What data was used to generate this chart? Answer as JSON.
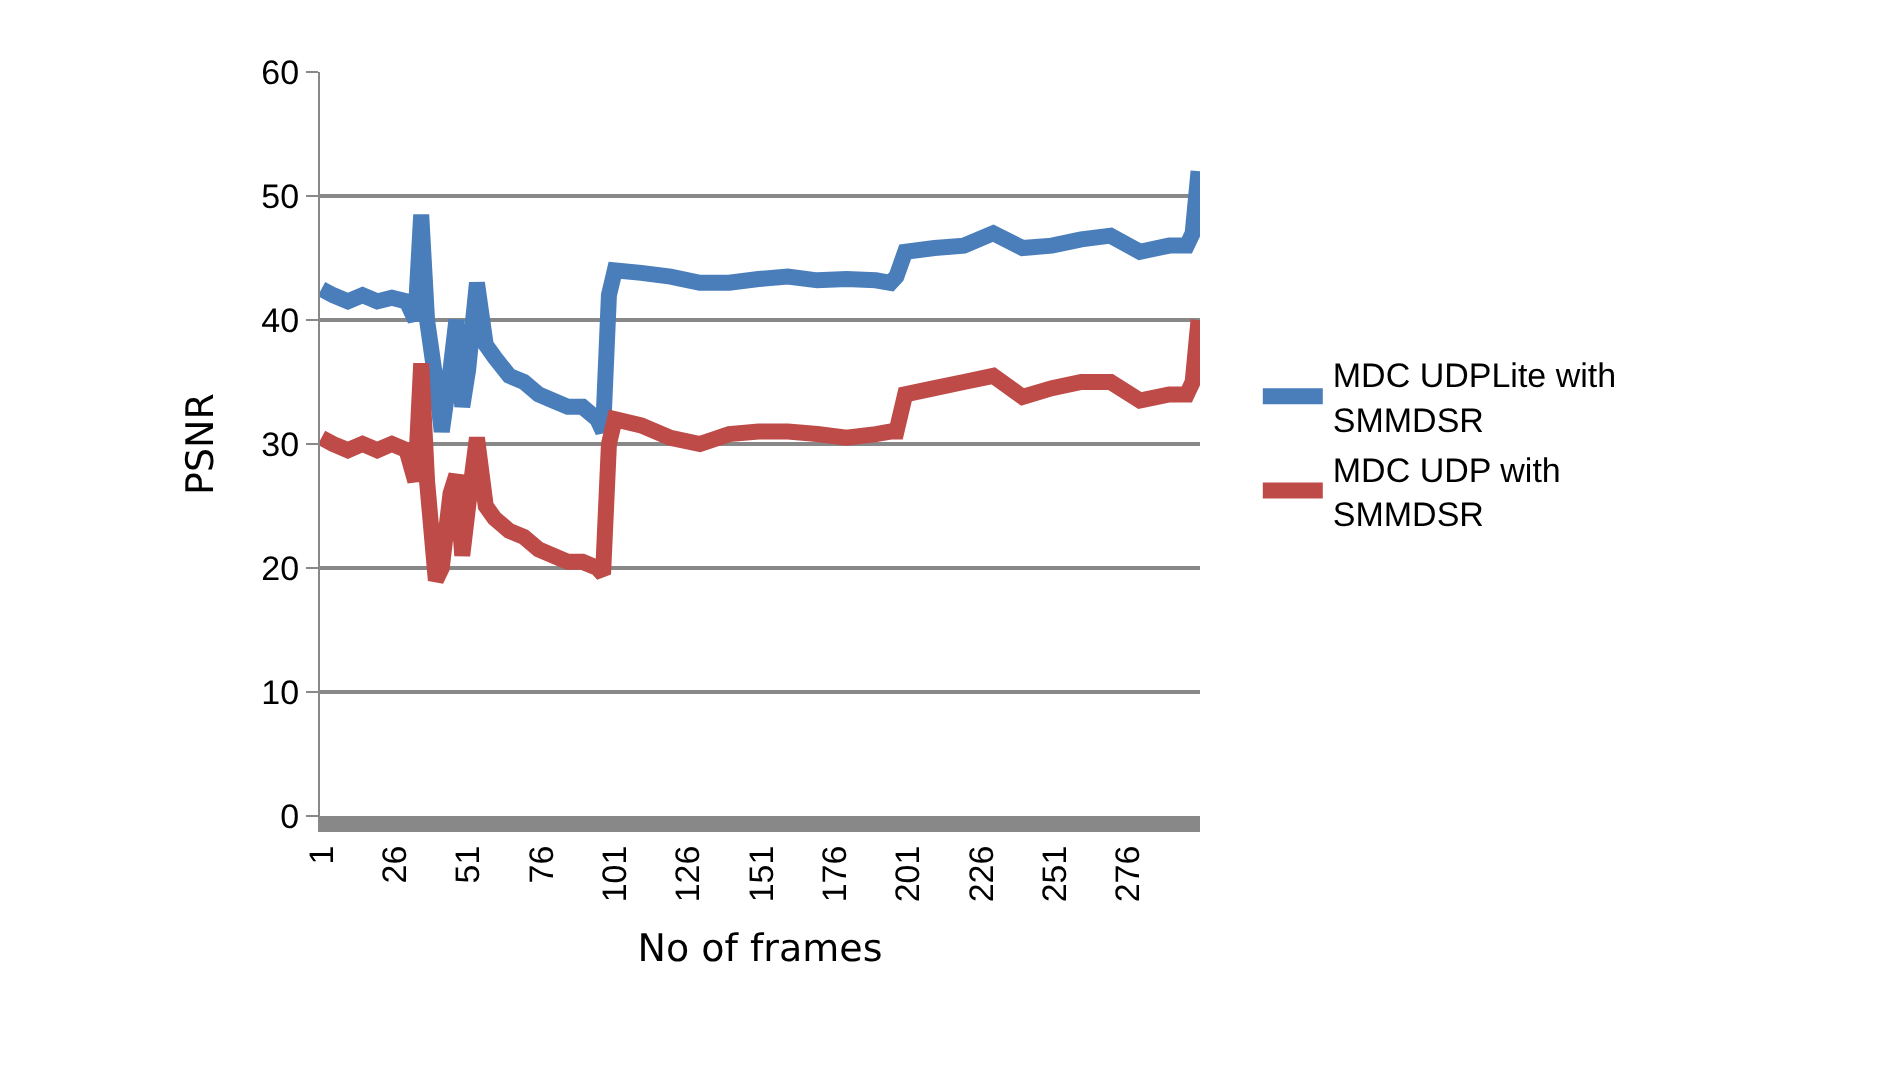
{
  "chart_data": {
    "type": "line",
    "xlabel": "No of frames",
    "ylabel": "PSNR",
    "x": [
      1,
      5,
      10,
      15,
      20,
      25,
      30,
      33,
      35,
      37,
      40,
      42,
      45,
      47,
      49,
      51,
      54,
      57,
      60,
      65,
      70,
      75,
      80,
      85,
      90,
      95,
      97,
      99,
      101,
      110,
      120,
      130,
      140,
      150,
      160,
      170,
      180,
      190,
      195,
      197,
      200,
      210,
      220,
      230,
      240,
      250,
      260,
      270,
      280,
      290,
      296,
      298,
      300
    ],
    "series": [
      {
        "name": "MDC UDPLite with SMMDSR",
        "color": "#4a7ebb",
        "values": [
          42.5,
          42,
          41.5,
          42,
          41.5,
          41.8,
          41.5,
          40,
          48.5,
          40,
          35,
          31,
          36,
          40,
          33,
          36,
          43,
          38,
          37,
          35.5,
          35,
          34,
          33.5,
          33,
          33,
          32,
          31,
          42,
          44,
          43.8,
          43.5,
          43,
          43,
          43.3,
          43.5,
          43.2,
          43.3,
          43.2,
          43,
          43.5,
          45.5,
          45.8,
          46,
          47,
          45.8,
          46,
          46.5,
          46.8,
          45.5,
          46,
          46,
          47,
          52
        ]
      },
      {
        "name": "MDC UDP with SMMDSR",
        "color": "#be4b48",
        "values": [
          30.5,
          30,
          29.5,
          30,
          29.5,
          30,
          29.5,
          27,
          36.5,
          27,
          19,
          20,
          26,
          27.5,
          21,
          25,
          30.5,
          25,
          24,
          23,
          22.5,
          21.5,
          21,
          20.5,
          20.5,
          20,
          19.5,
          30,
          32,
          31.5,
          30.5,
          30,
          30.8,
          31,
          31,
          30.8,
          30.5,
          30.8,
          31,
          31,
          34,
          34.5,
          35,
          35.5,
          33.8,
          34.5,
          35,
          35,
          33.5,
          34,
          34,
          35,
          40
        ]
      }
    ],
    "xlim": [
      0.5,
      300.5
    ],
    "xticks": [
      1,
      26,
      51,
      76,
      101,
      126,
      151,
      176,
      201,
      226,
      251,
      276
    ],
    "ylim": [
      0,
      60
    ],
    "yticks": [
      0,
      10,
      20,
      30,
      40,
      50,
      60
    ],
    "grid": "y",
    "legend": "right",
    "marker": "none",
    "line_style": "solid"
  }
}
